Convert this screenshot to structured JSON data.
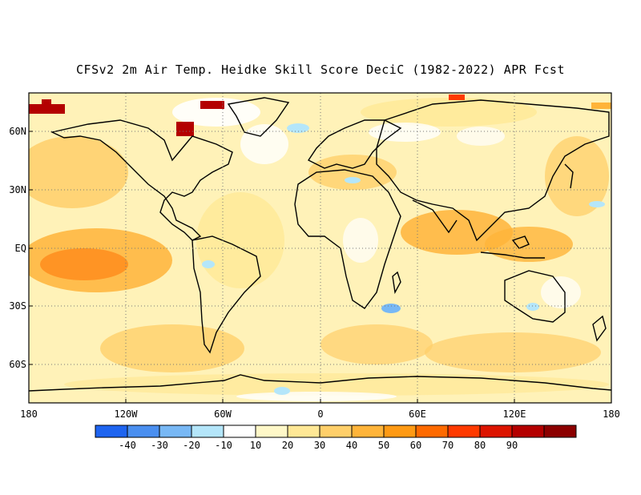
{
  "title": "CFSv2 2m Air Temp. Heidke Skill Score DeciC (1982-2022) APR Fcst",
  "lat_ticks": [
    "60N",
    "30N",
    "EQ",
    "30S",
    "60S"
  ],
  "lon_ticks": [
    "180",
    "120W",
    "60W",
    "0",
    "60E",
    "120E",
    "180"
  ],
  "colorbar": {
    "colors": [
      "#1e64f0",
      "#4a8ff0",
      "#78b8f5",
      "#b4e6fa",
      "#ffffff",
      "#fff8c8",
      "#ffe896",
      "#ffcf6a",
      "#ffb43a",
      "#ff9a14",
      "#ff6a00",
      "#ff3a00",
      "#dc1400",
      "#b40000",
      "#8c0000"
    ],
    "labels": [
      "-40",
      "-30",
      "-20",
      "-10",
      "10",
      "20",
      "30",
      "40",
      "50",
      "60",
      "70",
      "80",
      "90"
    ]
  }
}
